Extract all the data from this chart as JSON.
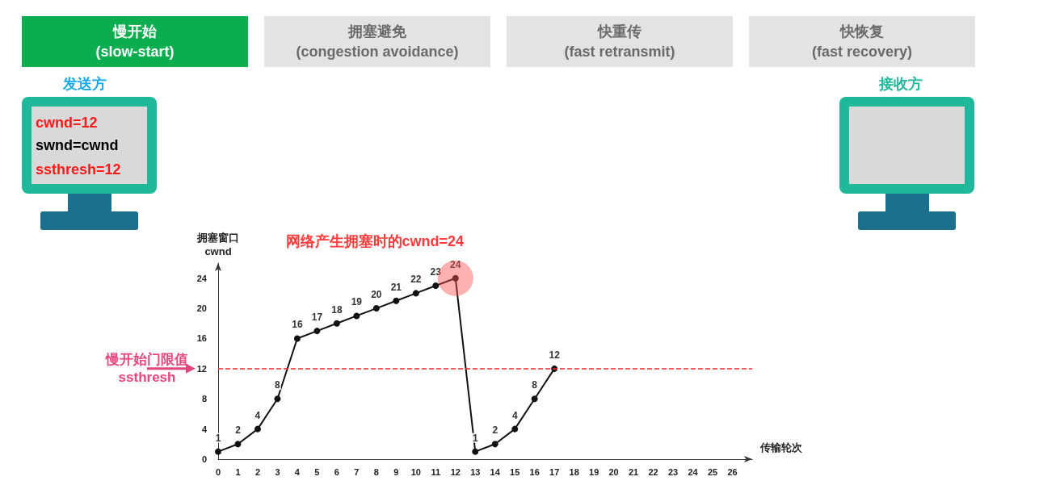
{
  "chart_data": {
    "type": "line",
    "xlabel": "传输轮次",
    "ylabel": "拥塞窗口\ncwnd",
    "x": [
      0,
      1,
      2,
      3,
      4,
      5,
      6,
      7,
      8,
      9,
      10,
      11,
      12,
      13,
      14,
      15,
      16,
      17
    ],
    "series": [
      {
        "color": "#111111",
        "values": [
          1,
          2,
          4,
          8,
          16,
          17,
          18,
          19,
          20,
          21,
          22,
          23,
          24,
          1,
          2,
          4,
          8,
          12
        ]
      }
    ],
    "xlim": [
      0,
      27
    ],
    "xticks": [
      0,
      1,
      2,
      3,
      4,
      5,
      6,
      7,
      8,
      9,
      10,
      11,
      12,
      13,
      14,
      15,
      16,
      17,
      18,
      19,
      20,
      21,
      22,
      23,
      24,
      25,
      26
    ],
    "ylim": [
      0,
      26
    ],
    "yticks": [
      0,
      4,
      8,
      12,
      16,
      20,
      24
    ],
    "grid": false,
    "marker": "circle",
    "line_style": "solid",
    "data_labels": true,
    "ref_lines": [
      {
        "axis": "y",
        "value": 12,
        "label": "慢开始门限值\nssthresh",
        "color": "#ff2a2a",
        "line_style": "dashed"
      }
    ],
    "annotations": [
      "慢开始\n(slow-start)",
      "拥塞避免\n(congestion avoidance)",
      "快重传\n(fast retransmit)",
      "快恢复\n(fast recovery)",
      "发送方",
      "接收方",
      "cwnd=12",
      "swnd=cwnd",
      "ssthresh=12",
      {
        "text": "网络产生拥塞时的cwnd=24",
        "x": 12,
        "y": 24
      }
    ]
  }
}
